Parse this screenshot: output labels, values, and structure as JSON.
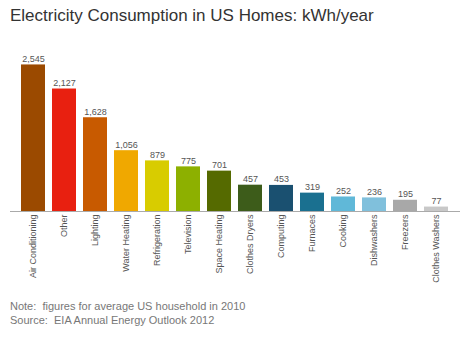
{
  "chart_data": {
    "type": "bar",
    "title": "Electricity Consumption in US Homes: kWh/year",
    "categories": [
      "Air Conditioning",
      "Other",
      "Lighting",
      "Water Heating",
      "Refrigeration",
      "Television",
      "Space Heating",
      "Clothes Dryers",
      "Computing",
      "Furnaces",
      "Cooking",
      "Dishwashers",
      "Freezers",
      "Clothes Washers"
    ],
    "values": [
      2545,
      2127,
      1628,
      1056,
      879,
      775,
      701,
      457,
      453,
      319,
      252,
      236,
      195,
      77
    ],
    "value_labels": [
      "2,545",
      "2,127",
      "1,628",
      "1,056",
      "879",
      "775",
      "701",
      "457",
      "453",
      "319",
      "252",
      "236",
      "195",
      "77"
    ],
    "colors": [
      "#9B4A00",
      "#E82010",
      "#C85A00",
      "#F0A800",
      "#D8CC00",
      "#8DB000",
      "#556A00",
      "#3D5C1A",
      "#1A5070",
      "#1A7090",
      "#60B8D8",
      "#80C0DC",
      "#A8A8A8",
      "#C8C8C8"
    ],
    "ylim": [
      0,
      2900
    ],
    "data_labels": true,
    "tick_labels": "x",
    "annotations": [
      "Note:  figures for average US household in 2010",
      "Source:  EIA Annual Energy Outlook 2012"
    ]
  }
}
